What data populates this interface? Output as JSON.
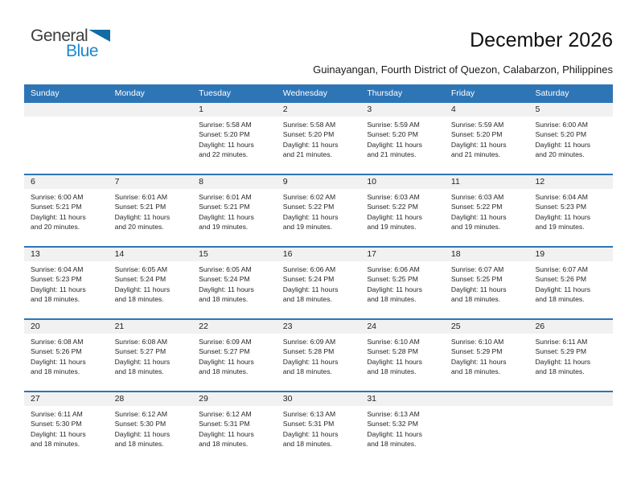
{
  "branding": {
    "general": "General",
    "blue": "Blue"
  },
  "header": {
    "title": "December 2026",
    "subtitle": "Guinayangan, Fourth District of Quezon, Calabarzon, Philippines"
  },
  "colors": {
    "header_bar": "#2E75B6",
    "week_divider": "#2E74B5",
    "day_number_band": "#F1F1F1",
    "logo_blue": "#1B87D0",
    "logo_triangle": "#126CA6"
  },
  "calendar": {
    "weekdays": [
      "Sunday",
      "Monday",
      "Tuesday",
      "Wednesday",
      "Thursday",
      "Friday",
      "Saturday"
    ],
    "weeks": [
      [
        null,
        null,
        {
          "day": "1",
          "sunrise": "Sunrise: 5:58 AM",
          "sunset": "Sunset: 5:20 PM",
          "daylight_line1": "Daylight: 11 hours",
          "daylight_line2": "and 22 minutes."
        },
        {
          "day": "2",
          "sunrise": "Sunrise: 5:58 AM",
          "sunset": "Sunset: 5:20 PM",
          "daylight_line1": "Daylight: 11 hours",
          "daylight_line2": "and 21 minutes."
        },
        {
          "day": "3",
          "sunrise": "Sunrise: 5:59 AM",
          "sunset": "Sunset: 5:20 PM",
          "daylight_line1": "Daylight: 11 hours",
          "daylight_line2": "and 21 minutes."
        },
        {
          "day": "4",
          "sunrise": "Sunrise: 5:59 AM",
          "sunset": "Sunset: 5:20 PM",
          "daylight_line1": "Daylight: 11 hours",
          "daylight_line2": "and 21 minutes."
        },
        {
          "day": "5",
          "sunrise": "Sunrise: 6:00 AM",
          "sunset": "Sunset: 5:20 PM",
          "daylight_line1": "Daylight: 11 hours",
          "daylight_line2": "and 20 minutes."
        }
      ],
      [
        {
          "day": "6",
          "sunrise": "Sunrise: 6:00 AM",
          "sunset": "Sunset: 5:21 PM",
          "daylight_line1": "Daylight: 11 hours",
          "daylight_line2": "and 20 minutes."
        },
        {
          "day": "7",
          "sunrise": "Sunrise: 6:01 AM",
          "sunset": "Sunset: 5:21 PM",
          "daylight_line1": "Daylight: 11 hours",
          "daylight_line2": "and 20 minutes."
        },
        {
          "day": "8",
          "sunrise": "Sunrise: 6:01 AM",
          "sunset": "Sunset: 5:21 PM",
          "daylight_line1": "Daylight: 11 hours",
          "daylight_line2": "and 19 minutes."
        },
        {
          "day": "9",
          "sunrise": "Sunrise: 6:02 AM",
          "sunset": "Sunset: 5:22 PM",
          "daylight_line1": "Daylight: 11 hours",
          "daylight_line2": "and 19 minutes."
        },
        {
          "day": "10",
          "sunrise": "Sunrise: 6:03 AM",
          "sunset": "Sunset: 5:22 PM",
          "daylight_line1": "Daylight: 11 hours",
          "daylight_line2": "and 19 minutes."
        },
        {
          "day": "11",
          "sunrise": "Sunrise: 6:03 AM",
          "sunset": "Sunset: 5:22 PM",
          "daylight_line1": "Daylight: 11 hours",
          "daylight_line2": "and 19 minutes."
        },
        {
          "day": "12",
          "sunrise": "Sunrise: 6:04 AM",
          "sunset": "Sunset: 5:23 PM",
          "daylight_line1": "Daylight: 11 hours",
          "daylight_line2": "and 19 minutes."
        }
      ],
      [
        {
          "day": "13",
          "sunrise": "Sunrise: 6:04 AM",
          "sunset": "Sunset: 5:23 PM",
          "daylight_line1": "Daylight: 11 hours",
          "daylight_line2": "and 18 minutes."
        },
        {
          "day": "14",
          "sunrise": "Sunrise: 6:05 AM",
          "sunset": "Sunset: 5:24 PM",
          "daylight_line1": "Daylight: 11 hours",
          "daylight_line2": "and 18 minutes."
        },
        {
          "day": "15",
          "sunrise": "Sunrise: 6:05 AM",
          "sunset": "Sunset: 5:24 PM",
          "daylight_line1": "Daylight: 11 hours",
          "daylight_line2": "and 18 minutes."
        },
        {
          "day": "16",
          "sunrise": "Sunrise: 6:06 AM",
          "sunset": "Sunset: 5:24 PM",
          "daylight_line1": "Daylight: 11 hours",
          "daylight_line2": "and 18 minutes."
        },
        {
          "day": "17",
          "sunrise": "Sunrise: 6:06 AM",
          "sunset": "Sunset: 5:25 PM",
          "daylight_line1": "Daylight: 11 hours",
          "daylight_line2": "and 18 minutes."
        },
        {
          "day": "18",
          "sunrise": "Sunrise: 6:07 AM",
          "sunset": "Sunset: 5:25 PM",
          "daylight_line1": "Daylight: 11 hours",
          "daylight_line2": "and 18 minutes."
        },
        {
          "day": "19",
          "sunrise": "Sunrise: 6:07 AM",
          "sunset": "Sunset: 5:26 PM",
          "daylight_line1": "Daylight: 11 hours",
          "daylight_line2": "and 18 minutes."
        }
      ],
      [
        {
          "day": "20",
          "sunrise": "Sunrise: 6:08 AM",
          "sunset": "Sunset: 5:26 PM",
          "daylight_line1": "Daylight: 11 hours",
          "daylight_line2": "and 18 minutes."
        },
        {
          "day": "21",
          "sunrise": "Sunrise: 6:08 AM",
          "sunset": "Sunset: 5:27 PM",
          "daylight_line1": "Daylight: 11 hours",
          "daylight_line2": "and 18 minutes."
        },
        {
          "day": "22",
          "sunrise": "Sunrise: 6:09 AM",
          "sunset": "Sunset: 5:27 PM",
          "daylight_line1": "Daylight: 11 hours",
          "daylight_line2": "and 18 minutes."
        },
        {
          "day": "23",
          "sunrise": "Sunrise: 6:09 AM",
          "sunset": "Sunset: 5:28 PM",
          "daylight_line1": "Daylight: 11 hours",
          "daylight_line2": "and 18 minutes."
        },
        {
          "day": "24",
          "sunrise": "Sunrise: 6:10 AM",
          "sunset": "Sunset: 5:28 PM",
          "daylight_line1": "Daylight: 11 hours",
          "daylight_line2": "and 18 minutes."
        },
        {
          "day": "25",
          "sunrise": "Sunrise: 6:10 AM",
          "sunset": "Sunset: 5:29 PM",
          "daylight_line1": "Daylight: 11 hours",
          "daylight_line2": "and 18 minutes."
        },
        {
          "day": "26",
          "sunrise": "Sunrise: 6:11 AM",
          "sunset": "Sunset: 5:29 PM",
          "daylight_line1": "Daylight: 11 hours",
          "daylight_line2": "and 18 minutes."
        }
      ],
      [
        {
          "day": "27",
          "sunrise": "Sunrise: 6:11 AM",
          "sunset": "Sunset: 5:30 PM",
          "daylight_line1": "Daylight: 11 hours",
          "daylight_line2": "and 18 minutes."
        },
        {
          "day": "28",
          "sunrise": "Sunrise: 6:12 AM",
          "sunset": "Sunset: 5:30 PM",
          "daylight_line1": "Daylight: 11 hours",
          "daylight_line2": "and 18 minutes."
        },
        {
          "day": "29",
          "sunrise": "Sunrise: 6:12 AM",
          "sunset": "Sunset: 5:31 PM",
          "daylight_line1": "Daylight: 11 hours",
          "daylight_line2": "and 18 minutes."
        },
        {
          "day": "30",
          "sunrise": "Sunrise: 6:13 AM",
          "sunset": "Sunset: 5:31 PM",
          "daylight_line1": "Daylight: 11 hours",
          "daylight_line2": "and 18 minutes."
        },
        {
          "day": "31",
          "sunrise": "Sunrise: 6:13 AM",
          "sunset": "Sunset: 5:32 PM",
          "daylight_line1": "Daylight: 11 hours",
          "daylight_line2": "and 18 minutes."
        },
        null,
        null
      ]
    ]
  }
}
